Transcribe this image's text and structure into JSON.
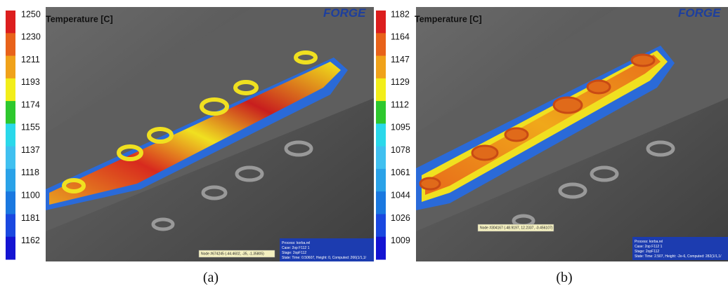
{
  "panels": [
    {
      "legend_title": "Temperature [C]",
      "scale": [
        1250,
        1230,
        1211,
        1193,
        1174,
        1155,
        1137,
        1118,
        1100,
        1181,
        1162
      ],
      "logo": "FORGE",
      "node": "Node #674245 (-44.4602, -35, -1.35805)",
      "info": [
        "Process: korba.rel",
        "Case:   2op F112 1",
        "Stage:  2opF112",
        "State:  Time: 0.50607, Height: 0, Computed: 266(1/1,1/"
      ],
      "caption": "(a)"
    },
    {
      "legend_title": "Temperature [C]",
      "scale": [
        1182,
        1164,
        1147,
        1129,
        1112,
        1095,
        1078,
        1061,
        1044,
        1026,
        1009
      ],
      "logo": "FORGE",
      "node": "Node #304167 (-48.9197, 12.2337, -0.456107)",
      "info": [
        "Process: korba.rel",
        "Case:   2op F112 1",
        "Stage:  2opF112",
        "State:  Time: 2.507, Height: -2e-6, Computed: 282(1/1,1/"
      ],
      "caption": "(b)"
    }
  ]
}
